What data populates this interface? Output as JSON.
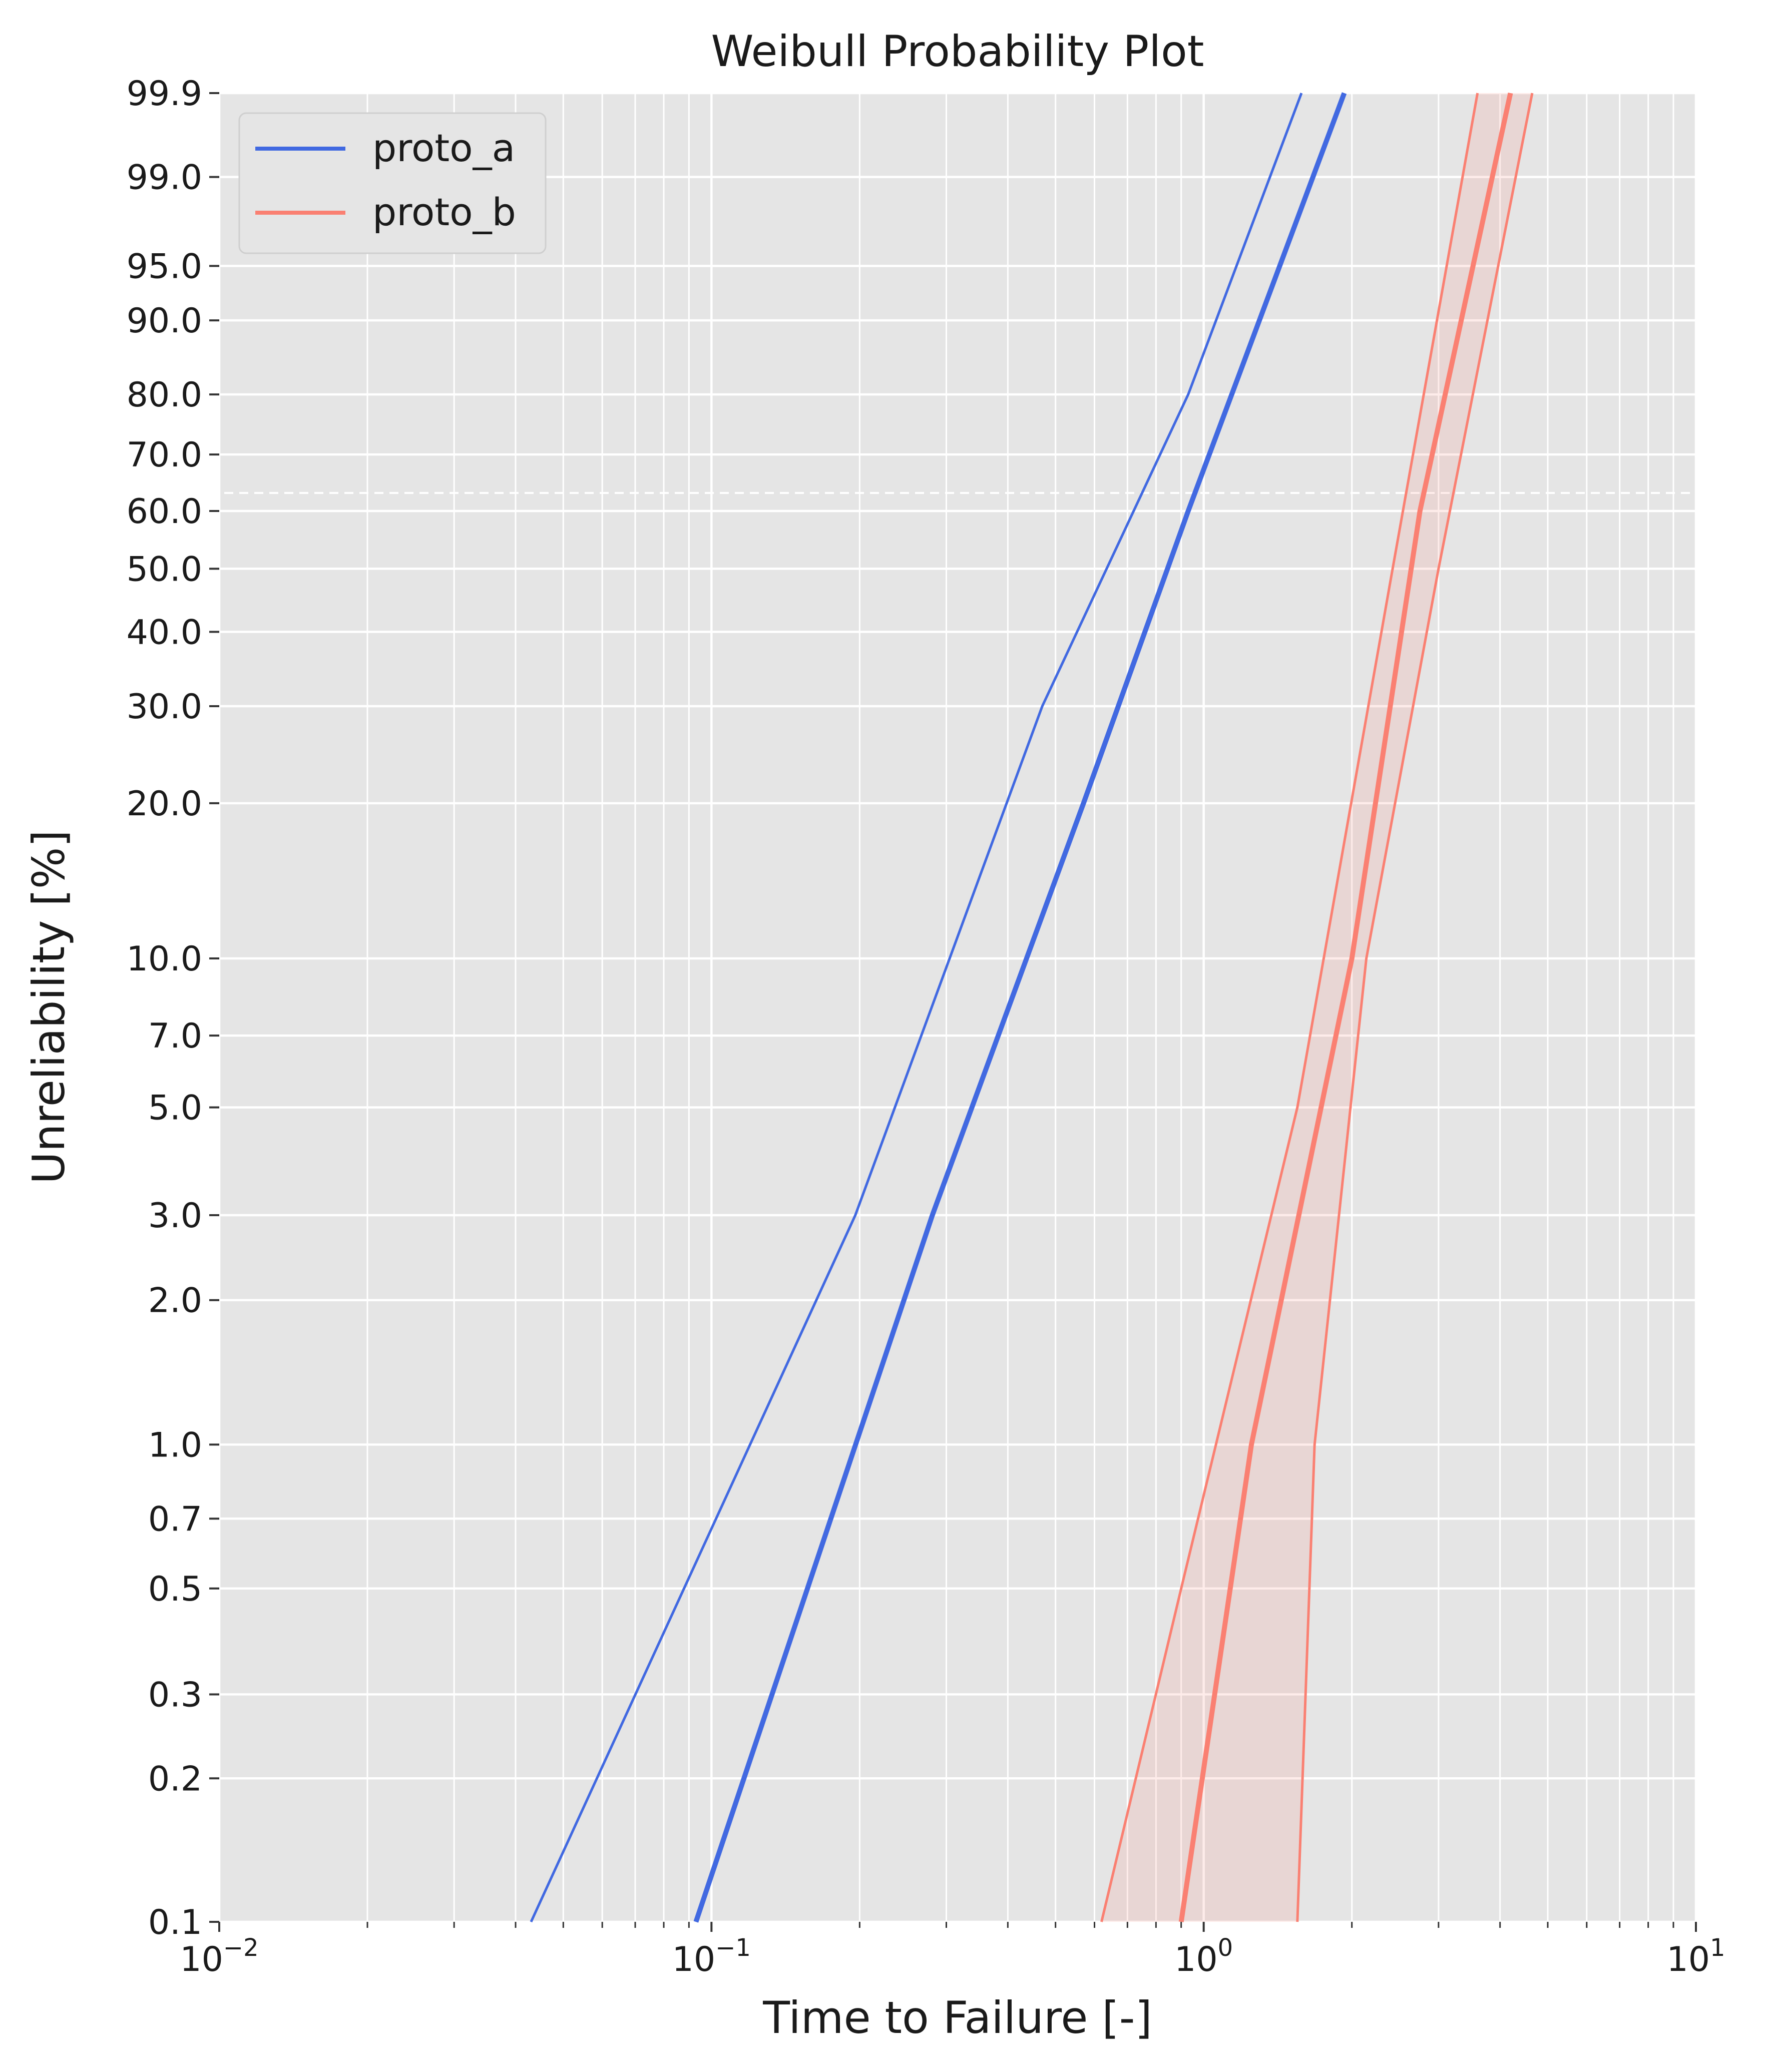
{
  "chart_data": {
    "type": "line",
    "title": "Weibull Probability Plot",
    "xlabel": "Time to Failure [-]",
    "ylabel": "Unreliability [%]",
    "x_scale": "log",
    "y_scale": "weibull",
    "xlim": [
      0.01,
      10
    ],
    "ylim": [
      0.1,
      99.9
    ],
    "x_ticks": [
      {
        "value": 0.01,
        "base": "10",
        "exp": "−2"
      },
      {
        "value": 0.1,
        "base": "10",
        "exp": "−1"
      },
      {
        "value": 1,
        "base": "10",
        "exp": "0"
      },
      {
        "value": 10,
        "base": "10",
        "exp": "1"
      }
    ],
    "y_ticks": [
      {
        "value": 0.1,
        "label": "0.1"
      },
      {
        "value": 0.2,
        "label": "0.2"
      },
      {
        "value": 0.3,
        "label": "0.3"
      },
      {
        "value": 0.5,
        "label": "0.5"
      },
      {
        "value": 0.7,
        "label": "0.7"
      },
      {
        "value": 1.0,
        "label": "1.0"
      },
      {
        "value": 2.0,
        "label": "2.0"
      },
      {
        "value": 3.0,
        "label": "3.0"
      },
      {
        "value": 5.0,
        "label": "5.0"
      },
      {
        "value": 7.0,
        "label": "7.0"
      },
      {
        "value": 10.0,
        "label": "10.0"
      },
      {
        "value": 20.0,
        "label": "20.0"
      },
      {
        "value": 30.0,
        "label": "30.0"
      },
      {
        "value": 40.0,
        "label": "40.0"
      },
      {
        "value": 50.0,
        "label": "50.0"
      },
      {
        "value": 60.0,
        "label": "60.0"
      },
      {
        "value": 70.0,
        "label": "70.0"
      },
      {
        "value": 80.0,
        "label": "80.0"
      },
      {
        "value": 90.0,
        "label": "90.0"
      },
      {
        "value": 95.0,
        "label": "95.0"
      },
      {
        "value": 99.0,
        "label": "99.0"
      },
      {
        "value": 99.9,
        "label": "99.9"
      }
    ],
    "reference_line": {
      "y": 63.2,
      "style": "dashed"
    },
    "grid": true,
    "legend_position": "top-left",
    "series": [
      {
        "name": "proto_a",
        "color": "#4169E1",
        "fit": {
          "x": [
            0.093,
            0.281,
            0.57,
            0.93,
            1.93
          ],
          "y": [
            0.1,
            3.0,
            20.0,
            60.0,
            99.9
          ]
        },
        "bound": {
          "x": [
            0.043,
            0.196,
            0.47,
            0.93,
            1.58
          ],
          "y": [
            0.1,
            3.0,
            30.0,
            80.0,
            99.9
          ]
        },
        "fill": false
      },
      {
        "name": "proto_b",
        "color": "#FA8072",
        "fit": {
          "x": [
            0.9,
            1.25,
            2.0,
            2.75,
            4.2
          ],
          "y": [
            0.1,
            1.0,
            10.0,
            60.0,
            99.9
          ]
        },
        "upper_bound": {
          "x": [
            0.62,
            0.9,
            1.55,
            2.42,
            3.6
          ],
          "y": [
            0.1,
            0.5,
            5.0,
            50.0,
            99.9
          ]
        },
        "lower_bound": {
          "x": [
            1.55,
            1.68,
            2.14,
            3.0,
            4.65
          ],
          "y": [
            0.1,
            1.0,
            10.0,
            50.0,
            99.9
          ]
        },
        "fill": true
      }
    ]
  }
}
